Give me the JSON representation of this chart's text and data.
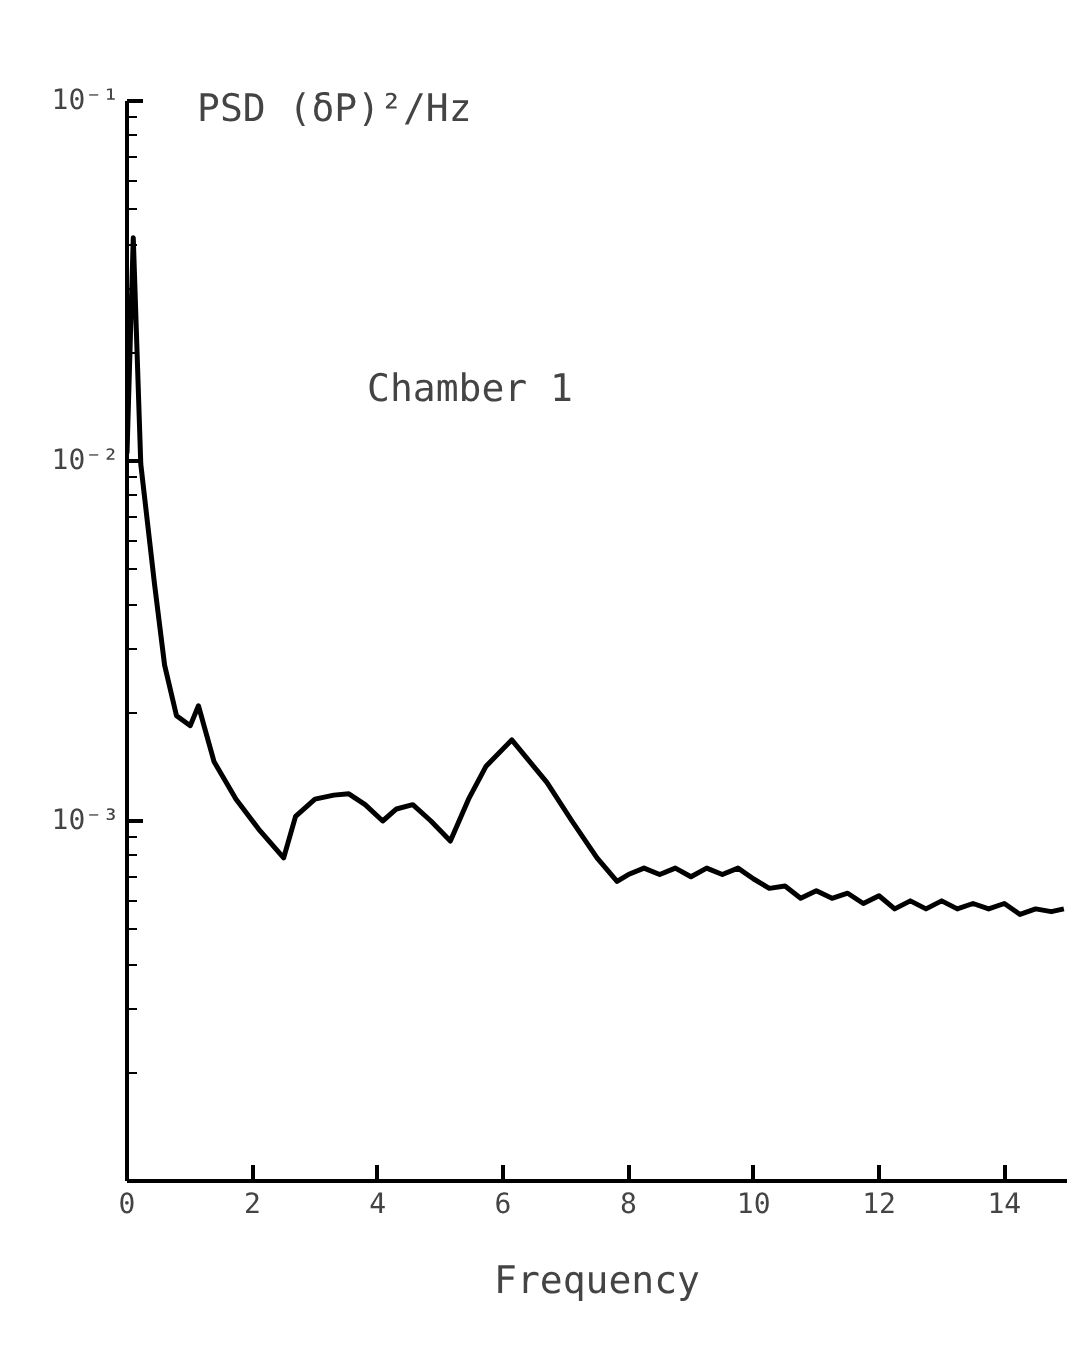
{
  "chart_data": {
    "type": "line",
    "xlabel": "Frequency",
    "ylabel": "PSD (δP)²/Hz",
    "annotations": [
      "Chamber 1"
    ],
    "log": "y",
    "grid": false,
    "marker": "none",
    "line_style": "solid",
    "xlim": [
      0,
      15
    ],
    "ylim": [
      0.0001,
      0.1
    ],
    "xticks": [
      0,
      2,
      4,
      6,
      8,
      10,
      12,
      14
    ],
    "yticks": [
      {
        "value": 0.1,
        "label": "10⁻¹"
      },
      {
        "value": 0.01,
        "label": "10⁻²"
      },
      {
        "value": 0.001,
        "label": "10⁻³"
      }
    ],
    "series": [
      {
        "color": "#000000",
        "x": [
          0,
          0.1,
          0.22,
          0.44,
          0.6,
          0.79,
          1.01,
          1.14,
          1.39,
          1.74,
          2.1,
          2.5,
          2.69,
          3.0,
          3.3,
          3.54,
          3.8,
          4.08,
          4.3,
          4.56,
          4.85,
          5.16,
          5.45,
          5.73,
          6.14,
          6.7,
          7.1,
          7.5,
          7.82,
          8.0,
          8.25,
          8.5,
          8.75,
          9.0,
          9.25,
          9.5,
          9.75,
          10.0,
          10.25,
          10.5,
          10.75,
          11.0,
          11.25,
          11.5,
          11.75,
          12.0,
          12.25,
          12.5,
          12.75,
          13.0,
          13.25,
          13.5,
          13.75,
          14.0,
          14.25,
          14.5,
          14.75,
          14.95
        ],
        "values": [
          0.0105,
          0.0417,
          0.0098,
          0.00454,
          0.00271,
          0.00196,
          0.00184,
          0.00209,
          0.00146,
          0.00115,
          0.00095,
          0.00079,
          0.00103,
          0.00115,
          0.00118,
          0.00119,
          0.00111,
          0.001,
          0.00108,
          0.00111,
          0.001,
          0.00088,
          0.00115,
          0.00142,
          0.00168,
          0.00128,
          0.001,
          0.00079,
          0.00068,
          0.00071,
          0.00074,
          0.00071,
          0.00074,
          0.0007,
          0.00074,
          0.00071,
          0.00074,
          0.00069,
          0.00065,
          0.00066,
          0.00061,
          0.00064,
          0.00061,
          0.00063,
          0.00059,
          0.00062,
          0.00057,
          0.0006,
          0.00057,
          0.0006,
          0.00057,
          0.00059,
          0.00057,
          0.00059,
          0.00055,
          0.00057,
          0.00056,
          0.00057
        ]
      }
    ]
  }
}
